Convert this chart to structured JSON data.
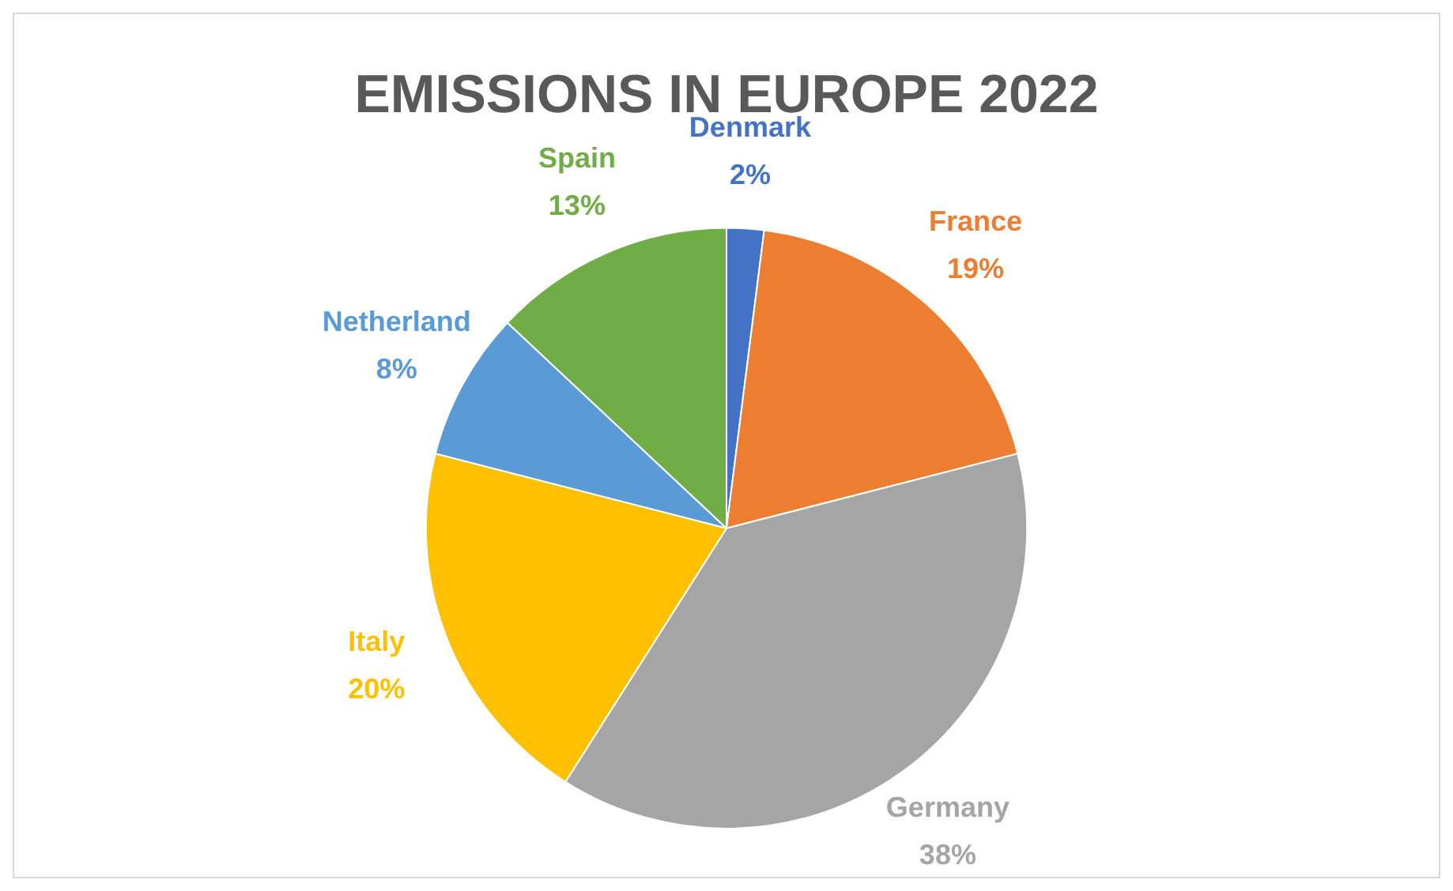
{
  "chart_data": {
    "type": "pie",
    "title": "EMISSIONS IN EUROPE 2022",
    "categories": [
      "Denmark",
      "France",
      "Germany",
      "Italy",
      "Netherland",
      "Spain"
    ],
    "values": [
      2,
      19,
      38,
      20,
      8,
      13
    ],
    "value_labels": [
      "2%",
      "19%",
      "38%",
      "20%",
      "8%",
      "13%"
    ],
    "colors": [
      "#4472c4",
      "#ed7d31",
      "#a5a5a5",
      "#ffc000",
      "#5b9bd5",
      "#70ad47"
    ],
    "legend": false
  }
}
